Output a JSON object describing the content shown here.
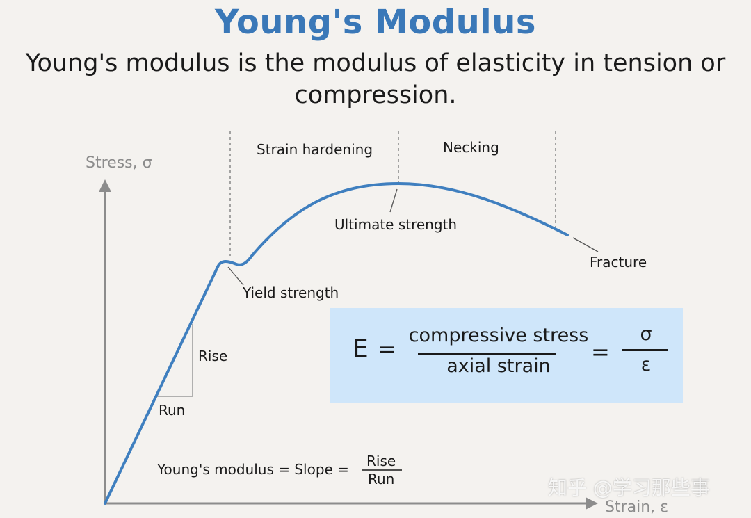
{
  "title": "Young's Modulus",
  "subtitle_line1": "Young's modulus is the modulus of elasticity in tension or",
  "subtitle_line2": "compression.",
  "axes": {
    "y_label": "Stress, σ",
    "x_label": "Strain, ε"
  },
  "regions": {
    "strain_hardening": "Strain hardening",
    "necking": "Necking"
  },
  "points": {
    "ultimate_strength": "Ultimate strength",
    "yield_strength": "Yield strength",
    "fracture": "Fracture"
  },
  "slope_triangle": {
    "rise": "Rise",
    "run": "Run"
  },
  "slope_formula": {
    "lhs": "Young's modulus = Slope =",
    "numerator": "Rise",
    "denominator": "Run"
  },
  "formula": {
    "lhs": "E",
    "eq": "=",
    "numerator": "compressive stress",
    "denominator": "axial strain",
    "eq2": "=",
    "sigma": "σ",
    "epsilon": "ε"
  },
  "watermark": "知乎 @学习那些事",
  "colors": {
    "curve": "#3f7fbf",
    "title": "#3a78b8",
    "axis": "#8c8c8c",
    "formula_bg": "#cfe6fa"
  }
}
